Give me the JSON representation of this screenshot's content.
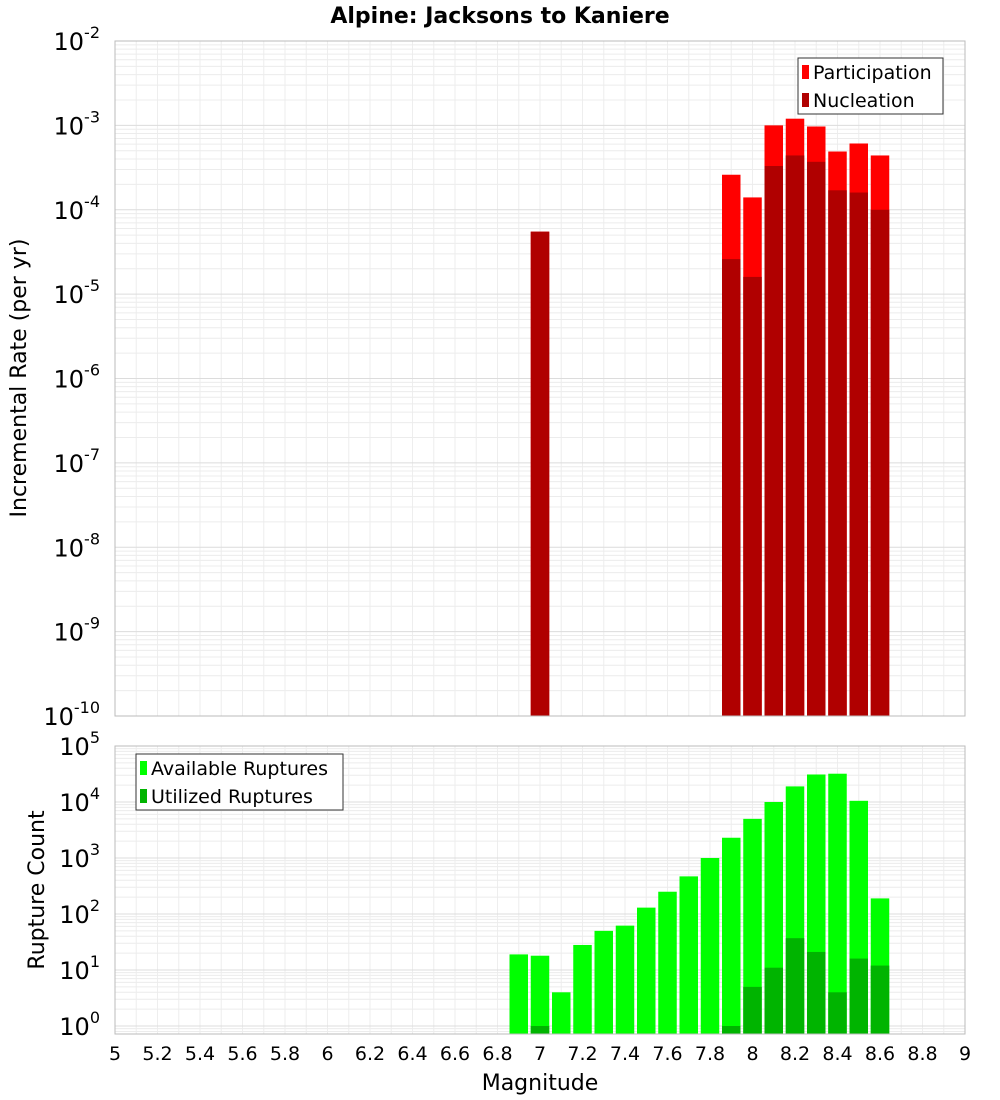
{
  "chart_data": [
    {
      "panel": "top",
      "type": "bar",
      "title": "Alpine: Jacksons to Kaniere",
      "ylabel": "Incremental Rate (per yr)",
      "y_scale": "log",
      "ylim": [
        1e-10,
        0.01
      ],
      "xlim": [
        5,
        9
      ],
      "grid": true,
      "legend_position": "top-right",
      "series": [
        {
          "name": "Participation",
          "color": "#ff0000",
          "x": [
            7.0,
            7.9,
            8.0,
            8.1,
            8.2,
            8.3,
            8.4,
            8.5,
            8.6
          ],
          "values": [
            5.5e-05,
            0.00026,
            0.00014,
            0.001,
            0.0012,
            0.00097,
            0.00049,
            0.00061,
            0.00044
          ]
        },
        {
          "name": "Nucleation",
          "color": "#b00000",
          "x": [
            7.0,
            7.9,
            8.0,
            8.1,
            8.2,
            8.3,
            8.4,
            8.5,
            8.6
          ],
          "values": [
            5.5e-05,
            2.6e-05,
            1.6e-05,
            0.00033,
            0.00044,
            0.00037,
            0.00017,
            0.00016,
            0.0001
          ]
        }
      ],
      "yticks": [
        {
          "base": "10",
          "exp": "-10"
        },
        {
          "base": "10",
          "exp": "-9"
        },
        {
          "base": "10",
          "exp": "-8"
        },
        {
          "base": "10",
          "exp": "-7"
        },
        {
          "base": "10",
          "exp": "-6"
        },
        {
          "base": "10",
          "exp": "-5"
        },
        {
          "base": "10",
          "exp": "-4"
        },
        {
          "base": "10",
          "exp": "-3"
        },
        {
          "base": "10",
          "exp": "-2"
        }
      ]
    },
    {
      "panel": "bottom",
      "type": "bar",
      "ylabel": "Rupture Count",
      "xlabel": "Magnitude",
      "y_scale": "log",
      "ylim": [
        0.72,
        100000
      ],
      "xlim": [
        5,
        9
      ],
      "grid": true,
      "legend_position": "top-left",
      "series": [
        {
          "name": "Available Ruptures",
          "color": "#00ff00",
          "x": [
            6.9,
            7.0,
            7.1,
            7.2,
            7.3,
            7.4,
            7.5,
            7.6,
            7.7,
            7.8,
            7.9,
            8.0,
            8.1,
            8.2,
            8.3,
            8.4,
            8.5,
            8.6
          ],
          "values": [
            19,
            18,
            4,
            28,
            50,
            62,
            130,
            250,
            470,
            1000,
            2300,
            5000,
            10000,
            19000,
            31000,
            32000,
            10500,
            190
          ]
        },
        {
          "name": "Utilized Ruptures",
          "color": "#00b400",
          "x": [
            7.0,
            7.9,
            8.0,
            8.1,
            8.2,
            8.3,
            8.4,
            8.5,
            8.6
          ],
          "values": [
            1,
            1,
            5,
            11,
            37,
            21,
            4,
            16,
            12
          ]
        }
      ],
      "yticks": [
        {
          "base": "10",
          "exp": "0"
        },
        {
          "base": "10",
          "exp": "1"
        },
        {
          "base": "10",
          "exp": "2"
        },
        {
          "base": "10",
          "exp": "3"
        },
        {
          "base": "10",
          "exp": "4"
        },
        {
          "base": "10",
          "exp": "5"
        }
      ],
      "xticks": [
        "5",
        "5.2",
        "5.4",
        "5.6",
        "5.8",
        "6",
        "6.2",
        "6.4",
        "6.6",
        "6.8",
        "7",
        "7.2",
        "7.4",
        "7.6",
        "7.8",
        "8",
        "8.2",
        "8.4",
        "8.6",
        "8.8",
        "9"
      ]
    }
  ]
}
